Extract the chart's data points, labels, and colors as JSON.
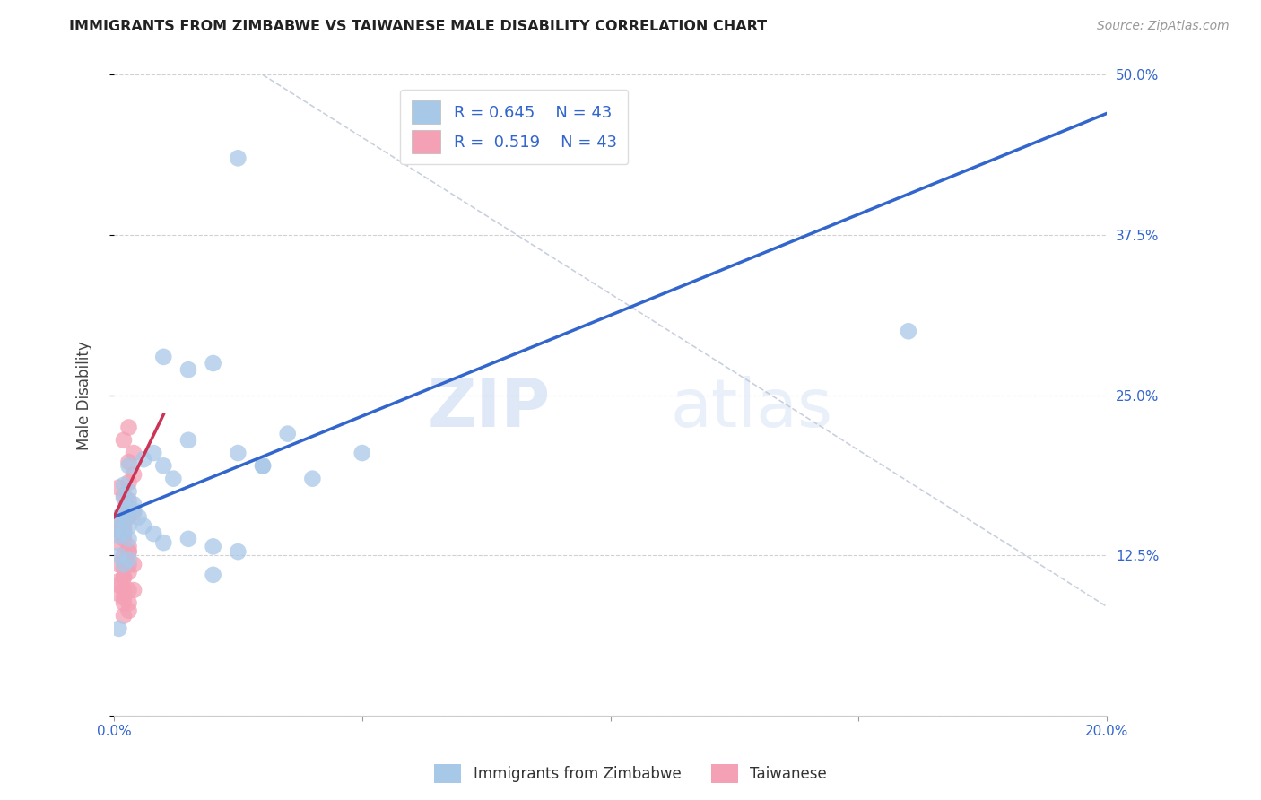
{
  "title": "IMMIGRANTS FROM ZIMBABWE VS TAIWANESE MALE DISABILITY CORRELATION CHART",
  "source": "Source: ZipAtlas.com",
  "ylabel": "Male Disability",
  "xlim": [
    0.0,
    0.2
  ],
  "ylim": [
    0.0,
    0.5
  ],
  "legend_r1": "R = 0.645",
  "legend_n1": "N = 43",
  "legend_r2": "R = 0.519",
  "legend_n2": "N = 43",
  "legend_label1": "Immigrants from Zimbabwe",
  "legend_label2": "Taiwanese",
  "color_blue": "#a8c8e8",
  "color_pink": "#f4a0b5",
  "color_line_blue": "#3366cc",
  "color_line_pink": "#cc3355",
  "color_line_dashed": "#c0c8d8",
  "watermark_zip": "ZIP",
  "watermark_atlas": "atlas",
  "blue_line": {
    "x0": 0.0,
    "y0": 0.155,
    "x1": 0.2,
    "y1": 0.47
  },
  "pink_line": {
    "x0": 0.0,
    "y0": 0.155,
    "x1": 0.01,
    "y1": 0.235
  },
  "dashed_line": {
    "x0": 0.03,
    "y0": 0.5,
    "x1": 0.2,
    "y1": 0.085
  },
  "zimbabwe_x": [
    0.001,
    0.002,
    0.003,
    0.001,
    0.002,
    0.004,
    0.003,
    0.001,
    0.002,
    0.003,
    0.002,
    0.003,
    0.001,
    0.002,
    0.003,
    0.006,
    0.008,
    0.01,
    0.012,
    0.015,
    0.02,
    0.025,
    0.03,
    0.04,
    0.05,
    0.03,
    0.025,
    0.02,
    0.035,
    0.015,
    0.01,
    0.16,
    0.003,
    0.002,
    0.001,
    0.004,
    0.005,
    0.006,
    0.008,
    0.01,
    0.015,
    0.02,
    0.025
  ],
  "zimbabwe_y": [
    0.155,
    0.152,
    0.148,
    0.145,
    0.158,
    0.16,
    0.162,
    0.14,
    0.143,
    0.138,
    0.17,
    0.175,
    0.125,
    0.18,
    0.195,
    0.2,
    0.205,
    0.195,
    0.185,
    0.27,
    0.275,
    0.205,
    0.195,
    0.185,
    0.205,
    0.195,
    0.435,
    0.11,
    0.22,
    0.215,
    0.28,
    0.3,
    0.122,
    0.118,
    0.068,
    0.165,
    0.155,
    0.148,
    0.142,
    0.135,
    0.138,
    0.132,
    0.128
  ],
  "taiwanese_x": [
    0.001,
    0.001,
    0.002,
    0.002,
    0.003,
    0.003,
    0.002,
    0.001,
    0.003,
    0.002,
    0.003,
    0.001,
    0.002,
    0.003,
    0.004,
    0.003,
    0.004,
    0.002,
    0.003,
    0.001,
    0.002,
    0.003,
    0.001,
    0.002,
    0.003,
    0.002,
    0.001,
    0.002,
    0.003,
    0.004,
    0.002,
    0.003,
    0.001,
    0.004,
    0.002,
    0.003,
    0.002,
    0.002,
    0.003,
    0.004,
    0.002,
    0.003,
    0.002
  ],
  "taiwanese_y": [
    0.135,
    0.148,
    0.152,
    0.158,
    0.162,
    0.168,
    0.172,
    0.178,
    0.128,
    0.142,
    0.182,
    0.118,
    0.125,
    0.132,
    0.188,
    0.198,
    0.205,
    0.215,
    0.225,
    0.102,
    0.108,
    0.112,
    0.095,
    0.098,
    0.088,
    0.092,
    0.105,
    0.115,
    0.118,
    0.098,
    0.148,
    0.155,
    0.145,
    0.158,
    0.078,
    0.082,
    0.145,
    0.138,
    0.128,
    0.118,
    0.108,
    0.098,
    0.088
  ]
}
